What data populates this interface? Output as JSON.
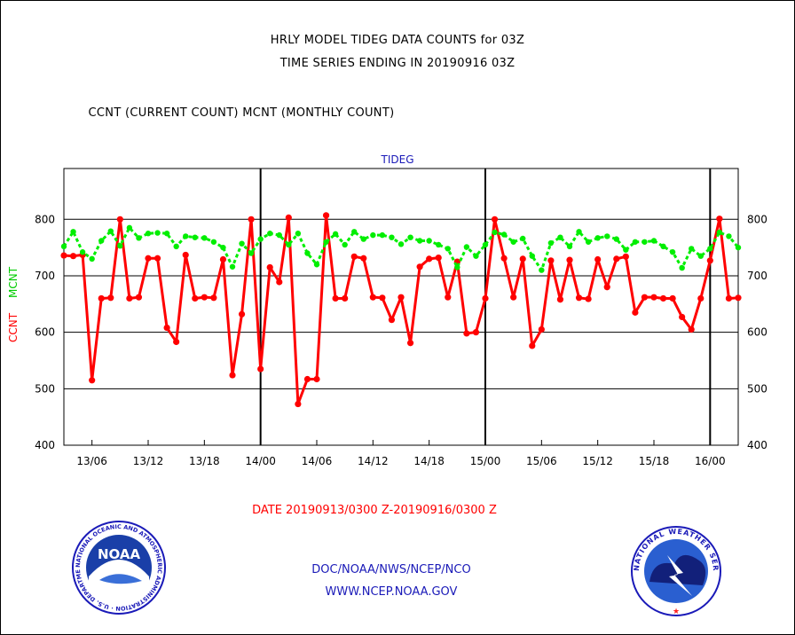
{
  "header": {
    "title1": "HRLY MODEL TIDEG DATA COUNTS for 03Z",
    "title2": "TIME SERIES ENDING IN 20190916 03Z",
    "subtitle": "CCNT (CURRENT COUNT) MCNT (MONTHLY COUNT)"
  },
  "chart_data": {
    "type": "line",
    "title": "TIDEG",
    "xlabel": "DATE 20190913/0300 Z-20190916/0300 Z",
    "ylabel_left_1": "CCNT",
    "ylabel_left_2": "MCNT",
    "ylim": [
      400,
      890
    ],
    "yticks": [
      400,
      500,
      600,
      700,
      800
    ],
    "grid": true,
    "x_tick_labels": [
      "13/06",
      "13/12",
      "13/18",
      "14/00",
      "14/06",
      "14/12",
      "14/18",
      "15/00",
      "15/06",
      "15/12",
      "15/18",
      "16/00"
    ],
    "x_tick_hours": [
      3,
      9,
      15,
      21,
      27,
      33,
      39,
      45,
      51,
      57,
      63,
      69
    ],
    "x_range_hours": [
      0,
      72
    ],
    "day_boundaries_hours": [
      21,
      45,
      69
    ],
    "series": [
      {
        "name": "CCNT",
        "color": "#ff0000",
        "values": [
          736,
          735,
          737,
          515,
          660,
          661,
          800,
          660,
          662,
          731,
          731,
          608,
          583,
          737,
          660,
          662,
          661,
          729,
          524,
          632,
          800,
          535,
          715,
          689,
          803,
          473,
          517,
          517,
          807,
          660,
          660,
          734,
          731,
          662,
          661,
          622,
          662,
          581,
          716,
          730,
          732,
          662,
          725,
          598,
          600,
          660,
          800,
          731,
          662,
          730,
          576,
          605,
          727,
          658,
          728,
          661,
          659,
          729,
          680,
          730,
          734,
          635,
          662,
          662,
          660,
          660,
          627,
          605,
          660,
          727,
          801,
          660,
          661
        ]
      },
      {
        "name": "MCNT",
        "color": "#00ee00",
        "values": [
          752,
          778,
          742,
          730,
          762,
          779,
          753,
          785,
          767,
          775,
          776,
          775,
          752,
          770,
          768,
          767,
          760,
          750,
          716,
          757,
          740,
          765,
          775,
          772,
          755,
          775,
          740,
          720,
          760,
          774,
          755,
          778,
          765,
          772,
          772,
          768,
          756,
          768,
          762,
          762,
          755,
          748,
          715,
          751,
          735,
          755,
          777,
          773,
          760,
          766,
          735,
          710,
          758,
          768,
          752,
          778,
          760,
          767,
          770,
          765,
          746,
          760,
          760,
          762,
          752,
          742,
          714,
          748,
          735,
          748,
          777,
          770,
          750
        ]
      }
    ]
  },
  "footer": {
    "agency": "DOC/NOAA/NWS/NCEP/NCO",
    "url": "WWW.NCEP.NOAA.GOV",
    "noaa_logo_text": "NOAA",
    "noaa_ring_text": "NATIONAL OCEANIC AND ATMOSPHERIC ADMINISTRATION · U.S. DEPARTMENT OF COMMERCE ·",
    "nws_ring_text": "NATIONAL WEATHER SERVICE"
  }
}
